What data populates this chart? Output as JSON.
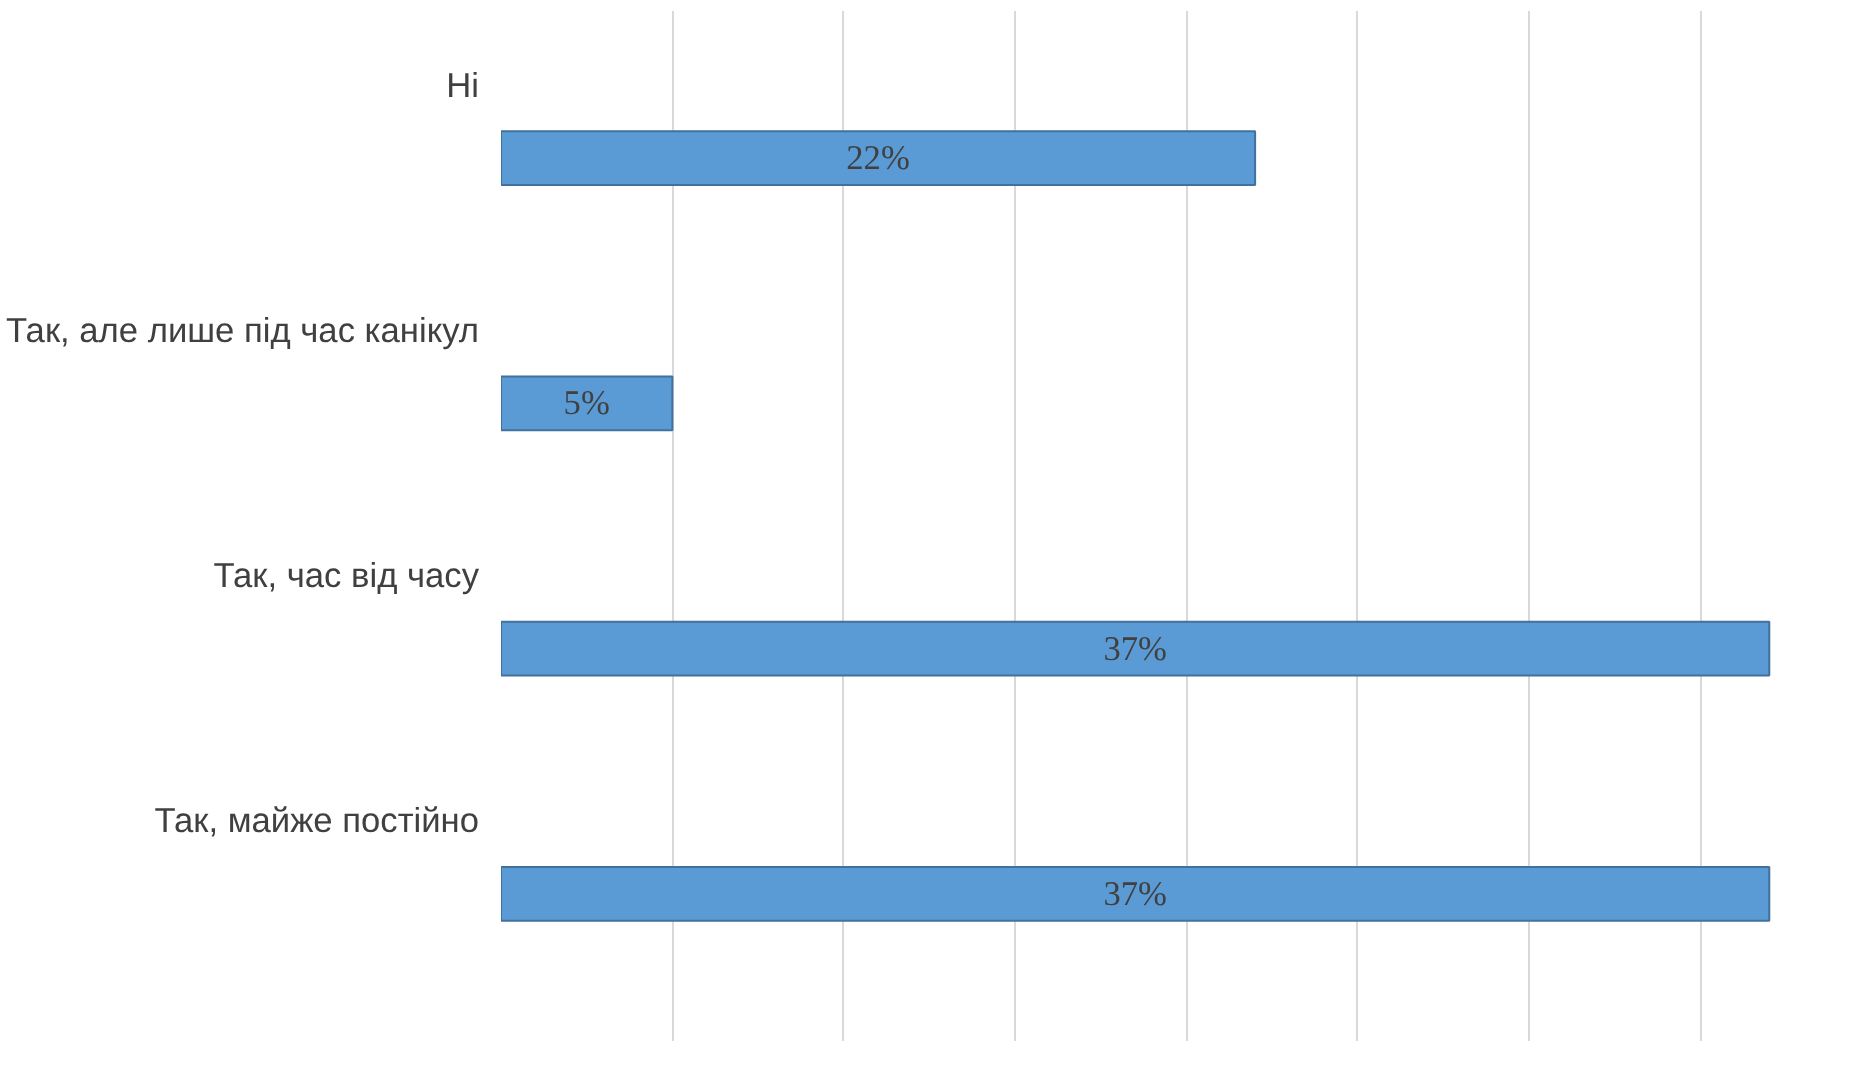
{
  "chart_data": {
    "type": "bar",
    "orientation": "horizontal",
    "categories": [
      "Ні",
      "Так, але лише під час канікул",
      "Так, час від часу",
      "Так, майже постійно"
    ],
    "values": [
      22,
      5,
      37,
      37
    ],
    "value_labels": [
      "22%",
      "5%",
      "37%",
      "37%"
    ],
    "color": "#5b9bd5",
    "grid": "x",
    "tick_labels": "y"
  }
}
